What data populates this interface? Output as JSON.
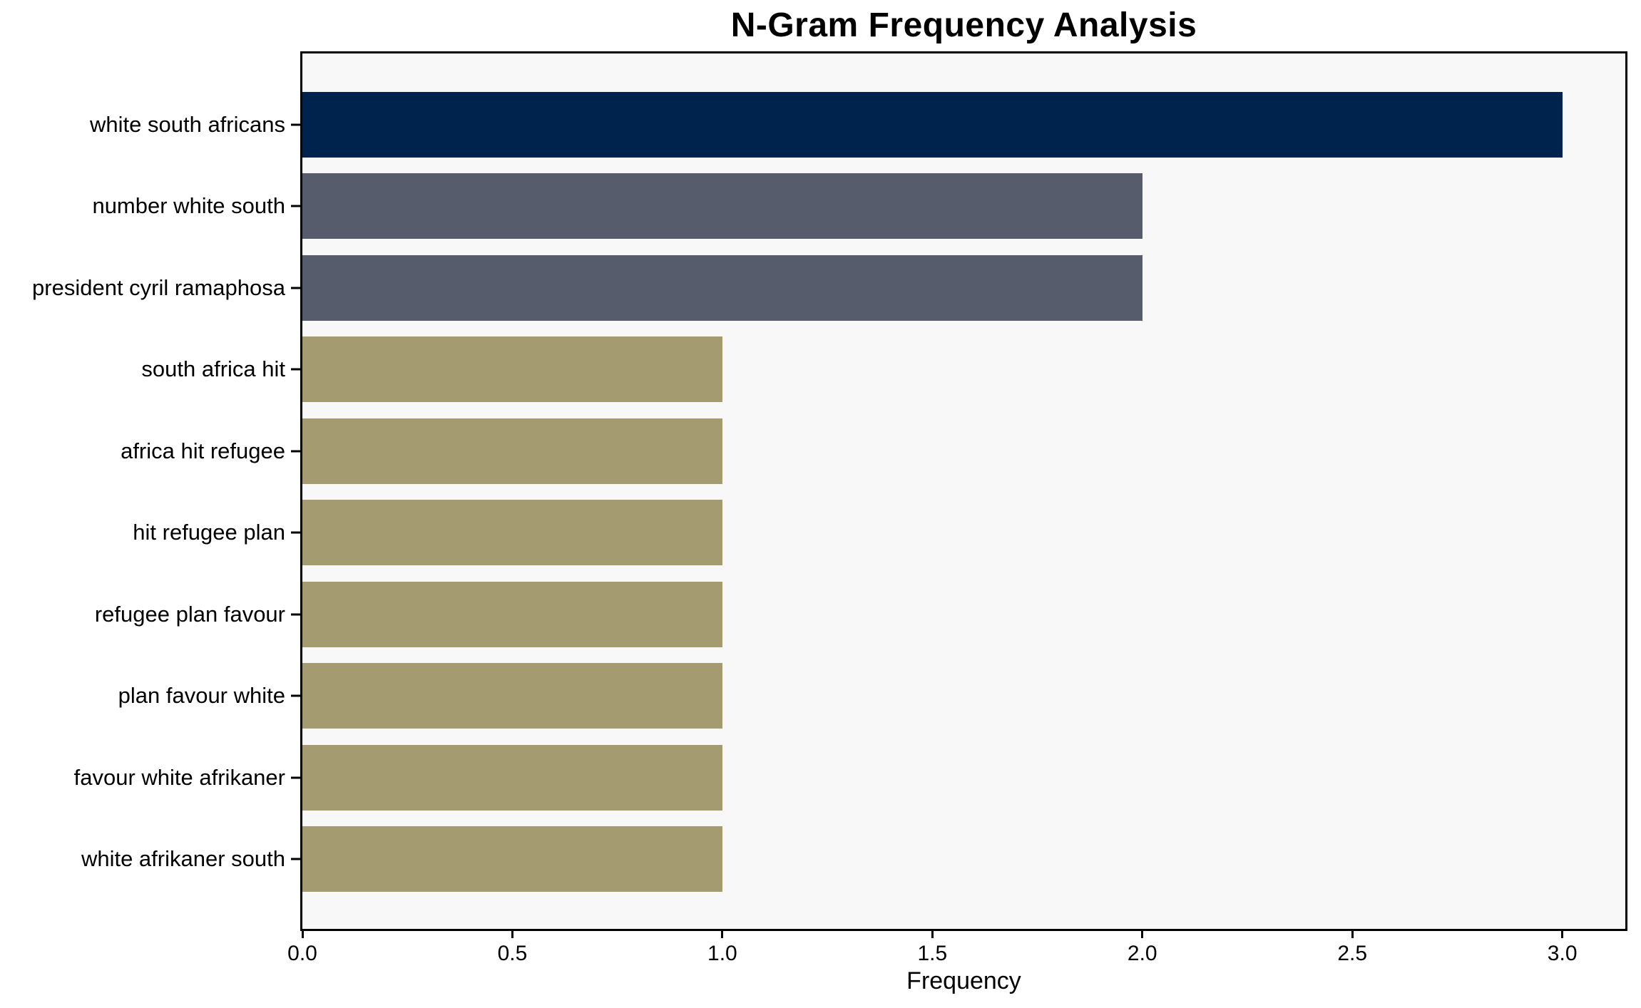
{
  "chart_data": {
    "type": "bar",
    "orientation": "horizontal",
    "title": "N-Gram Frequency Analysis",
    "xlabel": "Frequency",
    "ylabel": "",
    "categories": [
      "white south africans",
      "number white south",
      "president cyril ramaphosa",
      "south africa hit",
      "africa hit refugee",
      "hit refugee plan",
      "refugee plan favour",
      "plan favour white",
      "favour white afrikaner",
      "white afrikaner south"
    ],
    "values": [
      3,
      2,
      2,
      1,
      1,
      1,
      1,
      1,
      1,
      1
    ],
    "bar_colors": [
      "#00234D",
      "#565C6B",
      "#565C6B",
      "#A49C70",
      "#A49C70",
      "#A49C70",
      "#A49C70",
      "#A49C70",
      "#A49C70",
      "#A49C70"
    ],
    "x_ticks": [
      {
        "value": 0.0,
        "label": "0.0"
      },
      {
        "value": 0.5,
        "label": "0.5"
      },
      {
        "value": 1.0,
        "label": "1.0"
      },
      {
        "value": 1.5,
        "label": "1.5"
      },
      {
        "value": 2.0,
        "label": "2.0"
      },
      {
        "value": 2.5,
        "label": "2.5"
      },
      {
        "value": 3.0,
        "label": "3.0"
      }
    ],
    "xlim": [
      0,
      3.15
    ],
    "grid": false,
    "legend": false,
    "plot_background": "#F8F8F8",
    "figure_background": "#FFFFFF",
    "axis_color": "#000000",
    "text_color": "#000000"
  }
}
